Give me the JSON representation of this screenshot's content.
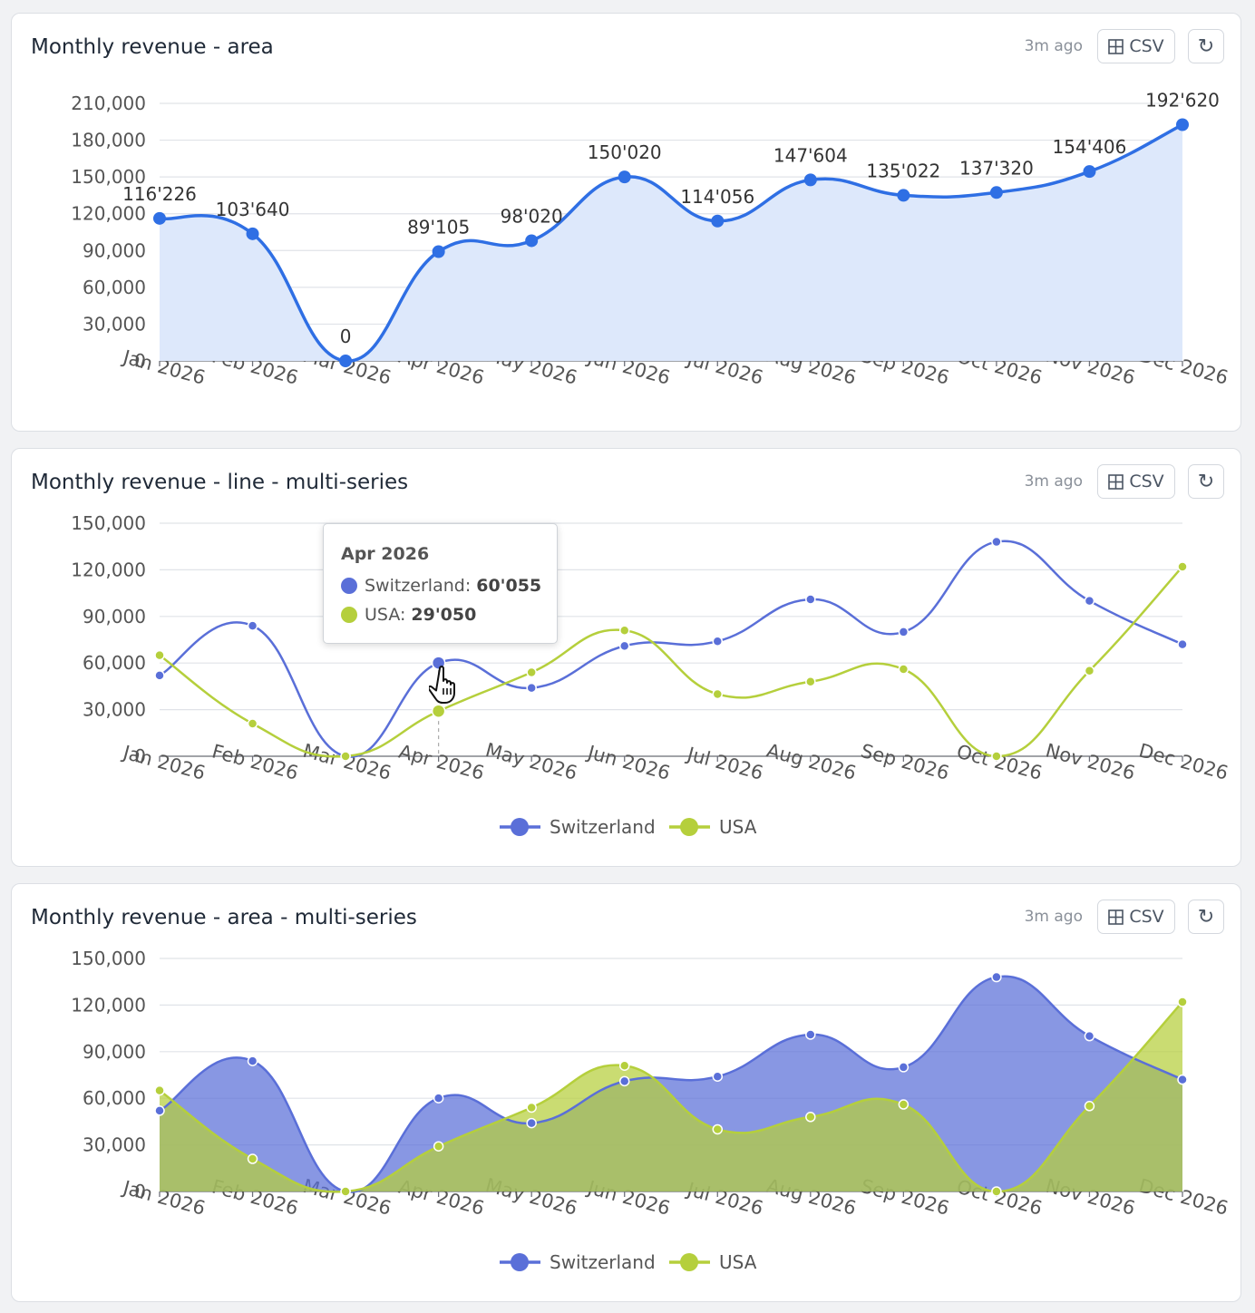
{
  "colors": {
    "single_series": "#2f6fe4",
    "single_area": "#dde8fb",
    "switzerland": "#5a6fd8",
    "usa": "#b5cf3c",
    "grid": "#e0e3e8",
    "axis_text": "#555555"
  },
  "icons": {
    "csv": "table-grid-icon",
    "refresh": "refresh-icon",
    "cursor": "hand-pointer-icon"
  },
  "cards": [
    {
      "title": "Monthly revenue - area",
      "updated": "3m ago",
      "csv_label": "CSV",
      "refresh_label": "↻"
    },
    {
      "title": "Monthly revenue - line - multi-series",
      "updated": "3m ago",
      "csv_label": "CSV",
      "refresh_label": "↻"
    },
    {
      "title": "Monthly revenue - area - multi-series",
      "updated": "3m ago",
      "csv_label": "CSV",
      "refresh_label": "↻"
    }
  ],
  "tooltip": {
    "title": "Apr 2026",
    "rows": [
      {
        "label": "Switzerland:",
        "value": "60'055"
      },
      {
        "label": "USA:",
        "value": "29'050"
      }
    ]
  },
  "chart_data": [
    {
      "type": "area",
      "title": "Monthly revenue - area",
      "categories": [
        "Jan 2026",
        "Feb 2026",
        "Mar 2026",
        "Apr 2026",
        "May 2026",
        "Jun 2026",
        "Jul 2026",
        "Aug 2026",
        "Sep 2026",
        "Oct 2026",
        "Nov 2026",
        "Dec 2026"
      ],
      "values": [
        116226,
        103640,
        0,
        89105,
        98020,
        150020,
        114056,
        147604,
        135022,
        137320,
        154406,
        192620
      ],
      "data_labels": [
        "116'226",
        "103'640",
        "0",
        "89'105",
        "98'020",
        "150'020",
        "114'056",
        "147'604",
        "135'022",
        "137'320",
        "154'406",
        "192'620"
      ],
      "yticks": [
        "0",
        "30,000",
        "60,000",
        "90,000",
        "120,000",
        "150,000",
        "180,000",
        "210,000"
      ],
      "ylim": [
        0,
        210000
      ],
      "grid": true,
      "smooth": true
    },
    {
      "type": "line",
      "title": "Monthly revenue - line - multi-series",
      "categories": [
        "Jan 2026",
        "Feb 2026",
        "Mar 2026",
        "Apr 2026",
        "May 2026",
        "Jun 2026",
        "Jul 2026",
        "Aug 2026",
        "Sep 2026",
        "Oct 2026",
        "Nov 2026",
        "Dec 2026"
      ],
      "series": [
        {
          "name": "Switzerland",
          "values": [
            52000,
            84000,
            0,
            60055,
            44000,
            71000,
            74000,
            101000,
            80000,
            138000,
            100000,
            72000
          ]
        },
        {
          "name": "USA",
          "values": [
            65000,
            21000,
            0,
            29050,
            54000,
            81000,
            40000,
            48000,
            56000,
            0,
            55000,
            122000
          ]
        }
      ],
      "yticks": [
        "0",
        "30,000",
        "60,000",
        "90,000",
        "120,000",
        "150,000"
      ],
      "ylim": [
        0,
        150000
      ],
      "grid": true,
      "legend": "bottom-center",
      "smooth": true
    },
    {
      "type": "area",
      "title": "Monthly revenue - area - multi-series",
      "categories": [
        "Jan 2026",
        "Feb 2026",
        "Mar 2026",
        "Apr 2026",
        "May 2026",
        "Jun 2026",
        "Jul 2026",
        "Aug 2026",
        "Sep 2026",
        "Oct 2026",
        "Nov 2026",
        "Dec 2026"
      ],
      "series": [
        {
          "name": "Switzerland",
          "values": [
            52000,
            84000,
            0,
            60055,
            44000,
            71000,
            74000,
            101000,
            80000,
            138000,
            100000,
            72000
          ]
        },
        {
          "name": "USA",
          "values": [
            65000,
            21000,
            0,
            29050,
            54000,
            81000,
            40000,
            48000,
            56000,
            0,
            55000,
            122000
          ]
        }
      ],
      "yticks": [
        "0",
        "30,000",
        "60,000",
        "90,000",
        "120,000",
        "150,000"
      ],
      "ylim": [
        0,
        150000
      ],
      "grid": true,
      "legend": "bottom-center",
      "smooth": true
    }
  ]
}
